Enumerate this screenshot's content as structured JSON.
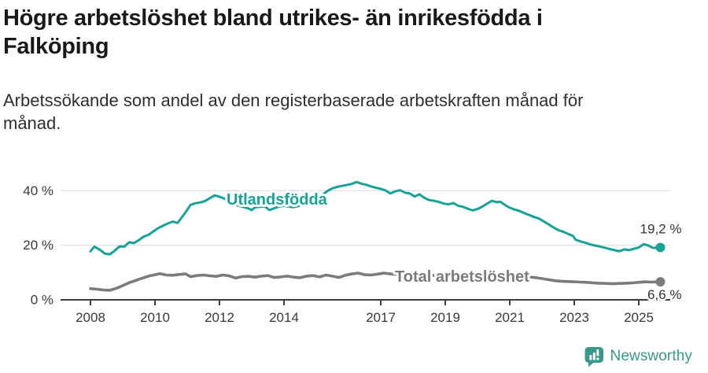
{
  "header": {
    "title_line1": "Högre arbetslöshet bland utrikes- än inrikesfödda i",
    "title_line2": "Falköping",
    "subtitle_line1": "Arbetssökande som andel av den registerbaserade arbetskraften månad för",
    "subtitle_line2": "månad."
  },
  "chart_data": {
    "type": "line",
    "title": "Högre arbetslöshet bland utrikes- än inrikesfödda i Falköping",
    "subtitle": "Arbetssökande som andel av den registerbaserade arbetskraften månad för månad.",
    "unit": "%",
    "xlim": [
      2007.9,
      2026.0
    ],
    "ylim": [
      0,
      45
    ],
    "grid": "horizontal",
    "legend_position": "inline",
    "x_axis": {
      "ticks": [
        {
          "label": "2008",
          "year": 2008
        },
        {
          "label": "2010",
          "year": 2010
        },
        {
          "label": "2012",
          "year": 2012
        },
        {
          "label": "2014",
          "year": 2014
        },
        {
          "label": "2017",
          "year": 2017
        },
        {
          "label": "2019",
          "year": 2019
        },
        {
          "label": "2021",
          "year": 2021
        },
        {
          "label": "2023",
          "year": 2023
        },
        {
          "label": "2025",
          "year": 2025
        }
      ]
    },
    "y_axis": {
      "ticks": [
        {
          "label": "0 %",
          "value": 0
        },
        {
          "label": "20 %",
          "value": 20
        },
        {
          "label": "40 %",
          "value": 40
        }
      ]
    },
    "colors": {
      "grid": "#e1e1e1",
      "axis": "#3f3f3f",
      "tick_text": "#383838",
      "value_text": "#333333"
    },
    "series": [
      {
        "name": "Utlandsfödda",
        "slug": "utlandsfodda",
        "color": "#17a296",
        "line_width": 3,
        "inline_label": {
          "text": "Utlandsfödda",
          "year": 2012.22,
          "pct": 34.9,
          "anchor": "start"
        },
        "end_label": "19,2 %",
        "end_label_position": "above",
        "points": [
          [
            2008.0,
            17.8
          ],
          [
            2008.12,
            19.5
          ],
          [
            2008.3,
            18.3
          ],
          [
            2008.45,
            16.9
          ],
          [
            2008.6,
            16.7
          ],
          [
            2008.75,
            18.0
          ],
          [
            2008.9,
            19.6
          ],
          [
            2009.05,
            19.5
          ],
          [
            2009.2,
            21.1
          ],
          [
            2009.35,
            20.8
          ],
          [
            2009.5,
            21.9
          ],
          [
            2009.65,
            23.2
          ],
          [
            2009.8,
            23.8
          ],
          [
            2009.95,
            25.1
          ],
          [
            2010.1,
            26.3
          ],
          [
            2010.25,
            27.2
          ],
          [
            2010.4,
            28.0
          ],
          [
            2010.55,
            28.7
          ],
          [
            2010.7,
            28.2
          ],
          [
            2010.85,
            30.5
          ],
          [
            2011.0,
            33.0
          ],
          [
            2011.1,
            34.8
          ],
          [
            2011.25,
            35.4
          ],
          [
            2011.4,
            35.7
          ],
          [
            2011.55,
            36.2
          ],
          [
            2011.7,
            37.3
          ],
          [
            2011.85,
            38.3
          ],
          [
            2012.0,
            37.8
          ],
          [
            2012.15,
            37.1
          ],
          [
            2012.3,
            35.8
          ],
          [
            2012.45,
            35.1
          ],
          [
            2012.6,
            34.5
          ],
          [
            2012.75,
            34.0
          ],
          [
            2012.9,
            33.5
          ],
          [
            2013.0,
            32.9
          ],
          [
            2013.1,
            33.9
          ],
          [
            2013.25,
            34.1
          ],
          [
            2013.4,
            34.3
          ],
          [
            2013.55,
            32.9
          ],
          [
            2013.7,
            33.6
          ],
          [
            2013.85,
            34.2
          ],
          [
            2014.0,
            34.5
          ],
          [
            2014.15,
            34.2
          ],
          [
            2014.3,
            34.0
          ],
          [
            2014.45,
            34.4
          ],
          [
            2014.6,
            35.2
          ],
          [
            2014.75,
            36.0
          ],
          [
            2014.9,
            36.6
          ],
          [
            2015.05,
            37.4
          ],
          [
            2015.2,
            38.6
          ],
          [
            2015.35,
            39.9
          ],
          [
            2015.5,
            40.9
          ],
          [
            2015.65,
            41.4
          ],
          [
            2015.8,
            41.8
          ],
          [
            2015.95,
            42.1
          ],
          [
            2016.1,
            42.5
          ],
          [
            2016.25,
            43.2
          ],
          [
            2016.4,
            42.6
          ],
          [
            2016.55,
            42.2
          ],
          [
            2016.7,
            41.6
          ],
          [
            2016.85,
            41.1
          ],
          [
            2017.0,
            40.7
          ],
          [
            2017.15,
            40.1
          ],
          [
            2017.3,
            39.0
          ],
          [
            2017.45,
            39.8
          ],
          [
            2017.6,
            40.2
          ],
          [
            2017.75,
            39.3
          ],
          [
            2017.9,
            39.0
          ],
          [
            2018.05,
            37.9
          ],
          [
            2018.2,
            38.7
          ],
          [
            2018.35,
            37.4
          ],
          [
            2018.5,
            36.6
          ],
          [
            2018.65,
            36.3
          ],
          [
            2018.8,
            35.9
          ],
          [
            2018.95,
            35.3
          ],
          [
            2019.1,
            35.0
          ],
          [
            2019.25,
            35.5
          ],
          [
            2019.4,
            34.5
          ],
          [
            2019.55,
            34.1
          ],
          [
            2019.7,
            33.4
          ],
          [
            2019.85,
            32.8
          ],
          [
            2020.0,
            33.3
          ],
          [
            2020.15,
            34.2
          ],
          [
            2020.3,
            35.3
          ],
          [
            2020.45,
            36.3
          ],
          [
            2020.6,
            35.8
          ],
          [
            2020.7,
            36.0
          ],
          [
            2020.85,
            34.8
          ],
          [
            2021.0,
            33.8
          ],
          [
            2021.15,
            33.1
          ],
          [
            2021.3,
            32.6
          ],
          [
            2021.45,
            31.8
          ],
          [
            2021.6,
            31.1
          ],
          [
            2021.75,
            30.4
          ],
          [
            2021.9,
            29.8
          ],
          [
            2022.05,
            28.8
          ],
          [
            2022.2,
            27.7
          ],
          [
            2022.35,
            26.6
          ],
          [
            2022.5,
            25.6
          ],
          [
            2022.65,
            25.0
          ],
          [
            2022.8,
            24.2
          ],
          [
            2022.95,
            23.5
          ],
          [
            2023.05,
            22.0
          ],
          [
            2023.2,
            21.4
          ],
          [
            2023.35,
            20.9
          ],
          [
            2023.5,
            20.3
          ],
          [
            2023.65,
            19.9
          ],
          [
            2023.8,
            19.5
          ],
          [
            2023.95,
            19.1
          ],
          [
            2024.1,
            18.6
          ],
          [
            2024.25,
            18.2
          ],
          [
            2024.4,
            17.8
          ],
          [
            2024.55,
            18.5
          ],
          [
            2024.7,
            18.2
          ],
          [
            2024.85,
            18.7
          ],
          [
            2025.0,
            19.2
          ],
          [
            2025.15,
            20.4
          ],
          [
            2025.3,
            19.9
          ],
          [
            2025.45,
            19.0
          ],
          [
            2025.6,
            19.3
          ],
          [
            2025.67,
            19.2
          ]
        ]
      },
      {
        "name": "Total arbetslöshet",
        "slug": "total-arbetsloshet",
        "color": "#7b7b7b",
        "line_width": 3.6,
        "inline_label": {
          "text": "Total arbetslöshet",
          "year": 2017.44,
          "pct": 6.6,
          "anchor": "start"
        },
        "end_label": "6,6 %",
        "end_label_position": "below",
        "points": [
          [
            2008.0,
            4.1
          ],
          [
            2008.2,
            3.9
          ],
          [
            2008.4,
            3.6
          ],
          [
            2008.6,
            3.5
          ],
          [
            2008.8,
            4.2
          ],
          [
            2009.0,
            5.2
          ],
          [
            2009.2,
            6.3
          ],
          [
            2009.4,
            7.1
          ],
          [
            2009.6,
            7.9
          ],
          [
            2009.8,
            8.7
          ],
          [
            2010.0,
            9.2
          ],
          [
            2010.15,
            9.6
          ],
          [
            2010.35,
            9.1
          ],
          [
            2010.55,
            9.0
          ],
          [
            2010.75,
            9.3
          ],
          [
            2010.95,
            9.5
          ],
          [
            2011.1,
            8.5
          ],
          [
            2011.3,
            8.9
          ],
          [
            2011.5,
            9.1
          ],
          [
            2011.7,
            8.8
          ],
          [
            2011.9,
            8.6
          ],
          [
            2012.1,
            9.1
          ],
          [
            2012.3,
            8.8
          ],
          [
            2012.5,
            8.0
          ],
          [
            2012.7,
            8.5
          ],
          [
            2012.9,
            8.6
          ],
          [
            2013.1,
            8.3
          ],
          [
            2013.3,
            8.7
          ],
          [
            2013.5,
            8.9
          ],
          [
            2013.7,
            8.2
          ],
          [
            2013.9,
            8.4
          ],
          [
            2014.1,
            8.7
          ],
          [
            2014.3,
            8.3
          ],
          [
            2014.5,
            8.1
          ],
          [
            2014.7,
            8.7
          ],
          [
            2014.9,
            8.9
          ],
          [
            2015.1,
            8.4
          ],
          [
            2015.3,
            9.1
          ],
          [
            2015.5,
            8.7
          ],
          [
            2015.7,
            8.2
          ],
          [
            2015.9,
            9.0
          ],
          [
            2016.1,
            9.5
          ],
          [
            2016.3,
            9.8
          ],
          [
            2016.5,
            9.2
          ],
          [
            2016.7,
            9.1
          ],
          [
            2016.9,
            9.4
          ],
          [
            2017.1,
            9.8
          ],
          [
            2017.3,
            9.5
          ],
          [
            2017.5,
            9.3
          ],
          [
            2017.7,
            9.6
          ],
          [
            2017.9,
            9.3
          ],
          [
            2018.1,
            9.0
          ],
          [
            2018.3,
            8.8
          ],
          [
            2018.5,
            9.1
          ],
          [
            2018.7,
            8.9
          ],
          [
            2018.9,
            8.7
          ],
          [
            2019.1,
            8.9
          ],
          [
            2019.3,
            8.8
          ],
          [
            2019.5,
            8.5
          ],
          [
            2019.7,
            8.3
          ],
          [
            2019.9,
            8.4
          ],
          [
            2020.1,
            8.7
          ],
          [
            2020.3,
            9.2
          ],
          [
            2020.45,
            9.4
          ],
          [
            2020.6,
            9.2
          ],
          [
            2020.8,
            9.0
          ],
          [
            2021.0,
            8.9
          ],
          [
            2021.2,
            9.0
          ],
          [
            2021.4,
            8.7
          ],
          [
            2021.6,
            8.4
          ],
          [
            2021.8,
            8.1
          ],
          [
            2022.0,
            7.8
          ],
          [
            2022.2,
            7.4
          ],
          [
            2022.4,
            7.0
          ],
          [
            2022.6,
            6.8
          ],
          [
            2022.8,
            6.7
          ],
          [
            2023.0,
            6.6
          ],
          [
            2023.2,
            6.5
          ],
          [
            2023.4,
            6.4
          ],
          [
            2023.6,
            6.2
          ],
          [
            2023.8,
            6.1
          ],
          [
            2024.0,
            6.0
          ],
          [
            2024.2,
            5.9
          ],
          [
            2024.4,
            6.0
          ],
          [
            2024.6,
            6.1
          ],
          [
            2024.8,
            6.2
          ],
          [
            2025.0,
            6.4
          ],
          [
            2025.2,
            6.6
          ],
          [
            2025.4,
            6.5
          ],
          [
            2025.67,
            6.6
          ]
        ]
      }
    ]
  },
  "footer": {
    "brand": "Newsworthy",
    "brand_color": "#39978c"
  }
}
